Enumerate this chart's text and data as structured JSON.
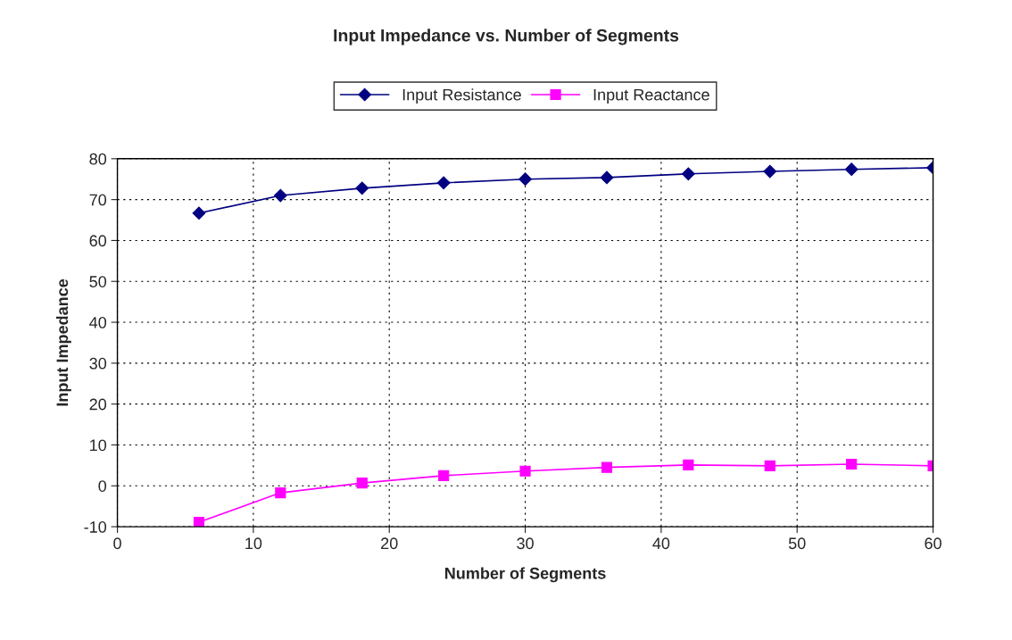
{
  "chart_data": {
    "type": "line",
    "title": "Input Impedance vs. Number of Segments",
    "xlabel": "Number of Segments",
    "ylabel": "Input Impedance",
    "x": [
      6,
      12,
      18,
      24,
      30,
      36,
      42,
      48,
      54,
      60
    ],
    "series": [
      {
        "name": "Input Resistance",
        "color": "#000080",
        "marker": "diamond",
        "values": [
          66.7,
          71.0,
          72.8,
          74.1,
          75.0,
          75.4,
          76.3,
          76.9,
          77.4,
          77.8
        ]
      },
      {
        "name": "Input Reactance",
        "color": "#ff00ff",
        "marker": "square",
        "values": [
          -8.9,
          -1.7,
          0.7,
          2.5,
          3.6,
          4.5,
          5.1,
          4.9,
          5.3,
          4.9
        ]
      }
    ],
    "xlim": [
      0,
      60
    ],
    "xticks": [
      0,
      10,
      20,
      30,
      40,
      50,
      60
    ],
    "ylim": [
      -10,
      80
    ],
    "yticks": [
      -10,
      0,
      10,
      20,
      30,
      40,
      50,
      60,
      70,
      80
    ],
    "grid": true,
    "legend": "top",
    "line_style": "solid"
  }
}
